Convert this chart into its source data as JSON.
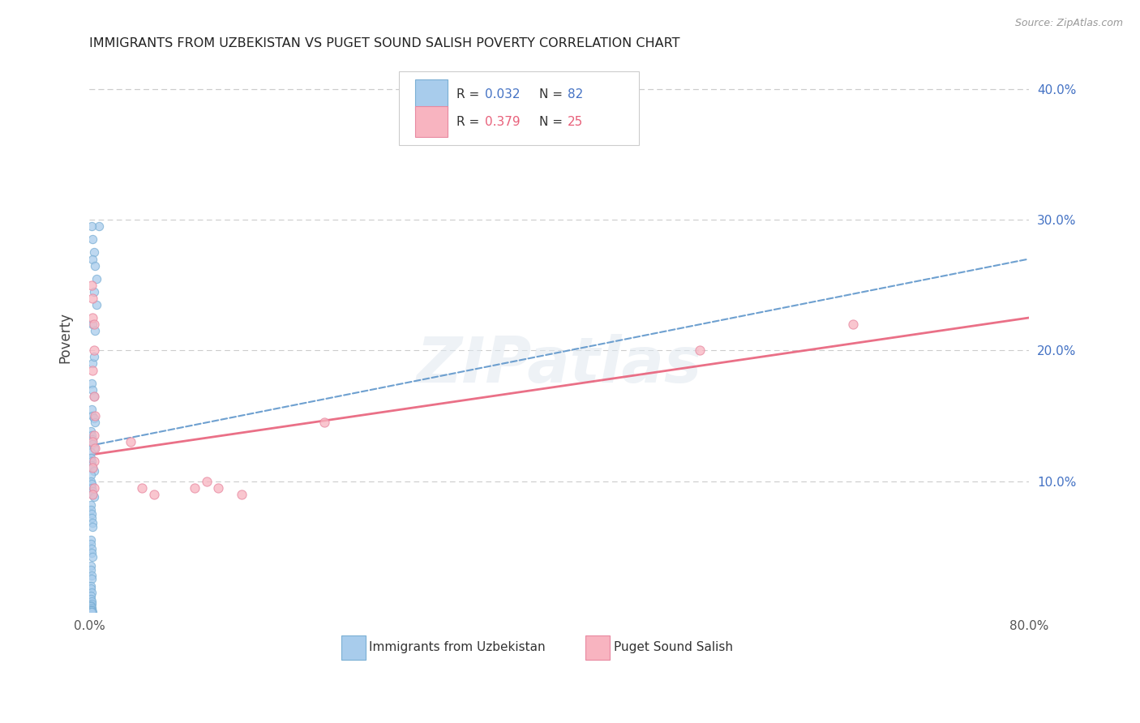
{
  "title": "IMMIGRANTS FROM UZBEKISTAN VS PUGET SOUND SALISH POVERTY CORRELATION CHART",
  "source": "Source: ZipAtlas.com",
  "ylabel": "Poverty",
  "xlim": [
    0.0,
    0.8
  ],
  "ylim": [
    0.0,
    0.42
  ],
  "xticks": [
    0.0,
    0.2,
    0.4,
    0.6,
    0.8
  ],
  "xtick_labels": [
    "0.0%",
    "",
    "",
    "",
    "80.0%"
  ],
  "yticks_right": [
    0.0,
    0.1,
    0.2,
    0.3,
    0.4
  ],
  "ytick_labels_right": [
    "",
    "10.0%",
    "20.0%",
    "30.0%",
    "40.0%"
  ],
  "legend_r1": "0.032",
  "legend_n1": "82",
  "legend_r2": "0.379",
  "legend_n2": "25",
  "series1_label": "Immigrants from Uzbekistan",
  "series2_label": "Puget Sound Salish",
  "series1_color": "#A8CCEC",
  "series2_color": "#F8B4C0",
  "series1_edge": "#7AAFD4",
  "series2_edge": "#E888A0",
  "trendline1_color": "#5590C8",
  "trendline2_color": "#E8607A",
  "background": "#ffffff",
  "grid_color": "#cccccc",
  "watermark": "ZIPatlas",
  "blue_trend_x": [
    0.0,
    0.8
  ],
  "blue_trend_y": [
    0.127,
    0.27
  ],
  "pink_trend_x": [
    0.0,
    0.8
  ],
  "pink_trend_y": [
    0.12,
    0.225
  ]
}
